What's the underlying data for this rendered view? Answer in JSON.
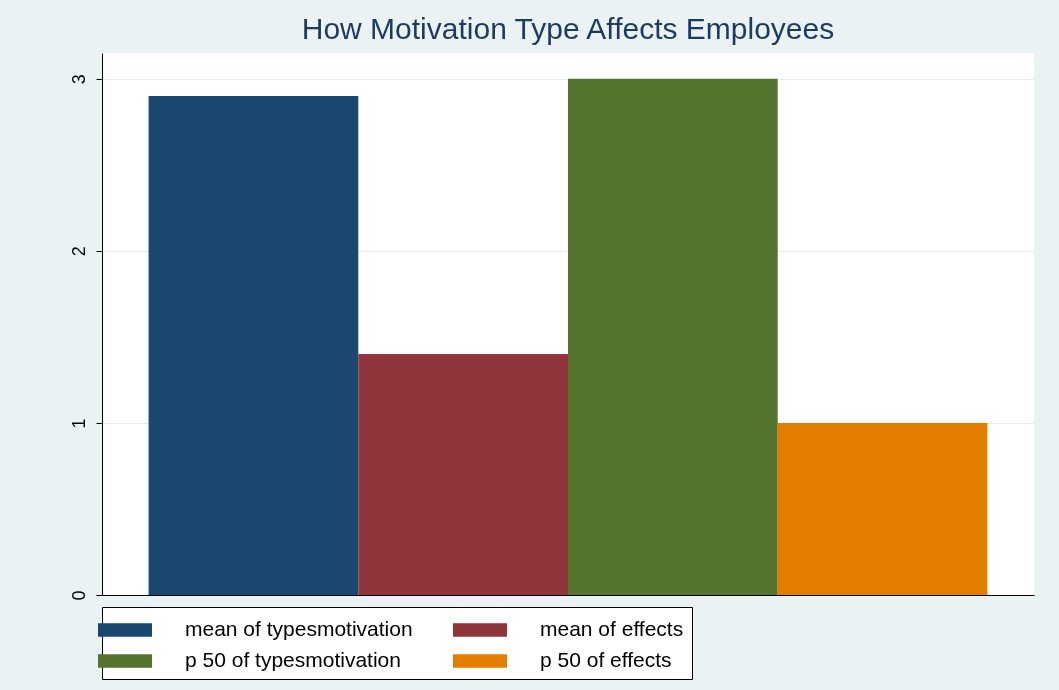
{
  "chart_data": {
    "type": "bar",
    "title": "How Motivation Type Affects Employees",
    "categories": [
      null
    ],
    "series": [
      {
        "name": "mean of typesmotivation",
        "color": "#1a476f",
        "values": [
          2.9
        ]
      },
      {
        "name": "mean of effects",
        "color": "#90353b",
        "values": [
          1.4
        ]
      },
      {
        "name": "p 50 of typesmotivation",
        "color": "#55752f",
        "values": [
          3
        ]
      },
      {
        "name": "p 50 of effects",
        "color": "#e37e00",
        "values": [
          1
        ]
      }
    ],
    "ylim": [
      0,
      3.15
    ],
    "yticks": [
      0,
      1,
      2,
      3
    ],
    "grid": "y",
    "legend": "bottom",
    "tick_labels": "y"
  }
}
